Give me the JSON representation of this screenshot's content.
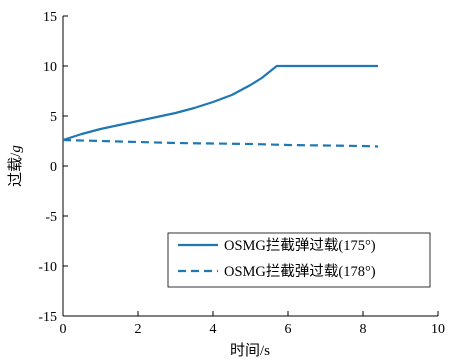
{
  "chart_data": {
    "type": "line",
    "xlabel": "时间/s",
    "ylabel_main": "过载/",
    "ylabel_italic": "g",
    "xlim": [
      0,
      10
    ],
    "ylim": [
      -15,
      15
    ],
    "xticks": [
      0,
      2,
      4,
      6,
      8,
      10
    ],
    "yticks": [
      -15,
      -10,
      -5,
      0,
      5,
      10,
      15
    ],
    "grid": false,
    "legend_position": "lower-right",
    "series": [
      {
        "name": "OSMG拦截弹过载(175°)",
        "style": "solid",
        "color": "#1f77b4",
        "x": [
          0,
          0.5,
          1,
          1.5,
          2,
          2.5,
          3,
          3.5,
          4,
          4.5,
          5,
          5.3,
          5.6,
          5.7,
          6,
          7,
          8,
          8.4
        ],
        "y": [
          2.6,
          3.2,
          3.7,
          4.1,
          4.5,
          4.9,
          5.3,
          5.8,
          6.4,
          7.1,
          8.1,
          8.8,
          9.7,
          10,
          10,
          10,
          10,
          10
        ]
      },
      {
        "name": "OSMG拦截弹过载(178°)",
        "style": "dashed",
        "color": "#1f77b4",
        "x": [
          0,
          1,
          2,
          3,
          4,
          5,
          6,
          7,
          8,
          8.4
        ],
        "y": [
          2.6,
          2.5,
          2.4,
          2.3,
          2.25,
          2.2,
          2.1,
          2.05,
          2.0,
          1.95
        ]
      }
    ]
  }
}
